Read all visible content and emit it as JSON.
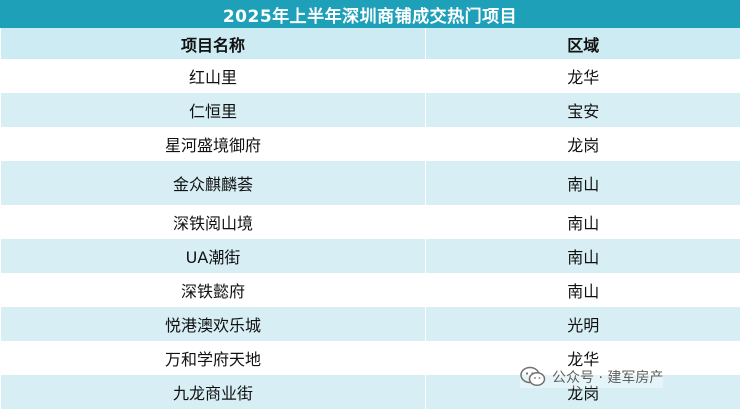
{
  "title": "2025年上半年深圳商铺成交热门项目",
  "table": {
    "headers": [
      "项目名称",
      "区域"
    ],
    "rows": [
      {
        "name": "红山里",
        "district": "龙华"
      },
      {
        "name": "仁恒里",
        "district": "宝安"
      },
      {
        "name": "星河盛境御府",
        "district": "龙岗"
      },
      {
        "name": "金众麒麟荟",
        "district": "南山"
      },
      {
        "name": "深铁阅山境",
        "district": "南山"
      },
      {
        "name": "UA潮街",
        "district": "南山"
      },
      {
        "name": "深铁懿府",
        "district": "南山"
      },
      {
        "name": "悦港澳欢乐城",
        "district": "光明"
      },
      {
        "name": "万和学府天地",
        "district": "龙华"
      },
      {
        "name": "九龙商业街",
        "district": "龙岗"
      }
    ]
  },
  "watermark": {
    "icon": "wechat-icon",
    "text": "公众号 · 建军房产"
  }
}
